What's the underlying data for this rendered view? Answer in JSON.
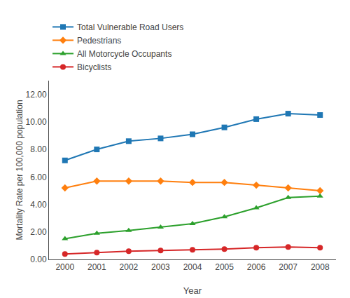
{
  "chart_data": {
    "type": "line",
    "x": [
      2000,
      2001,
      2002,
      2003,
      2004,
      2005,
      2006,
      2007,
      2008
    ],
    "series": [
      {
        "name": "Total Vulnerable Road Users",
        "marker": "square",
        "values": [
          7.2,
          8.0,
          8.6,
          8.8,
          9.1,
          9.6,
          10.2,
          10.6,
          10.5
        ]
      },
      {
        "name": "Pedestrians",
        "marker": "diamond",
        "values": [
          5.2,
          5.7,
          5.7,
          5.7,
          5.6,
          5.6,
          5.4,
          5.2,
          5.0
        ]
      },
      {
        "name": "All Motorcycle Occupants",
        "marker": "triangle-up",
        "values": [
          1.5,
          1.9,
          2.1,
          2.35,
          2.6,
          3.1,
          3.75,
          4.5,
          4.6
        ]
      },
      {
        "name": "Bicyclists",
        "marker": "circle",
        "values": [
          0.4,
          0.5,
          0.6,
          0.65,
          0.7,
          0.75,
          0.85,
          0.9,
          0.85
        ]
      }
    ],
    "x_label": "Year",
    "y_label": "Mortality Rate per 100,000 population",
    "xlim": [
      1999.5,
      2008.5
    ],
    "xticks": [
      2000,
      2001,
      2002,
      2003,
      2004,
      2005,
      2006,
      2007,
      2008
    ],
    "ylim": [
      0.0,
      13.0
    ],
    "yticks": [
      {
        "value": 0,
        "label": "0.00"
      },
      {
        "value": 2,
        "label": "2.00"
      },
      {
        "value": 4,
        "label": "4.00"
      },
      {
        "value": 6,
        "label": "6.00"
      },
      {
        "value": 8,
        "label": "8.00"
      },
      {
        "value": 10,
        "label": "10.00"
      },
      {
        "value": 12,
        "label": "12.00"
      }
    ],
    "grid": false,
    "legend": "above"
  }
}
